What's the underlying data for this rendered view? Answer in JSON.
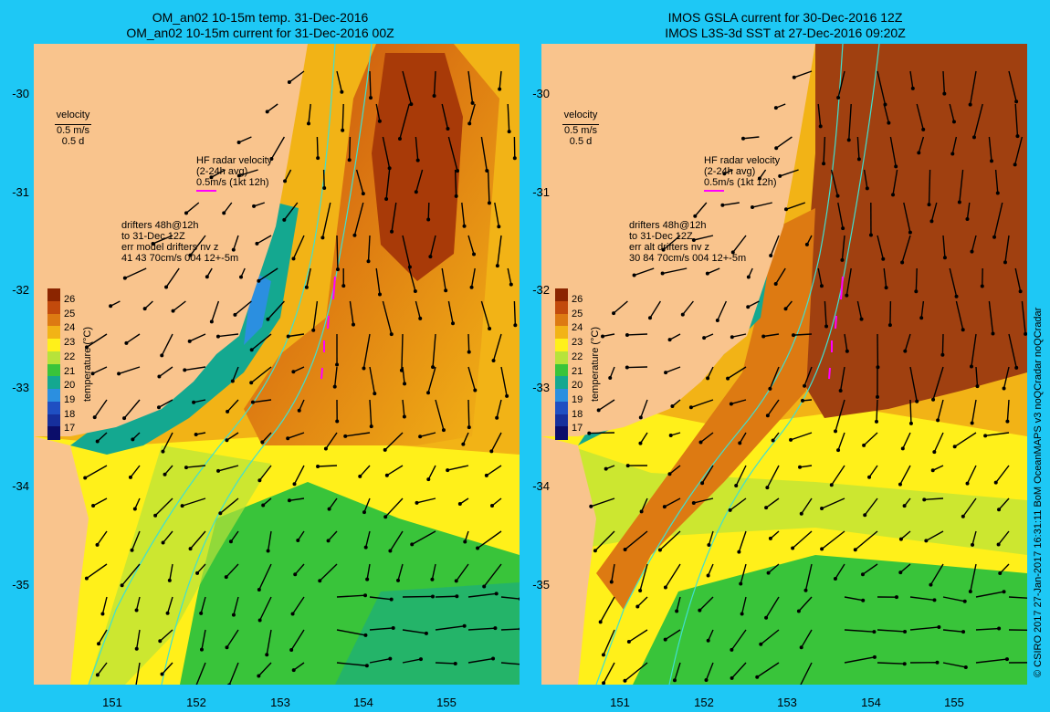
{
  "left_panel": {
    "title_line1": "OM_an02 10-15m temp. 31-Dec-2016",
    "title_line2": "OM_an02 10-15m current for 31-Dec-2016 00Z",
    "drifters_text": "drifters 48h@12h",
    "drifters_to": "to 31-Dec 12Z",
    "err_line": "err model drifters nv z",
    "err_values": "41 43 70cm/s 004 12+-5m"
  },
  "right_panel": {
    "title_line1": "IMOS GSLA current for 30-Dec-2016 12Z",
    "title_line2": "IMOS L3S-3d SST at 27-Dec-2016 09:20Z",
    "drifters_text": "drifters 48h@12h",
    "drifters_to": "to 31-Dec 12Z",
    "err_line": "err alt drifters nv z",
    "err_values": "30 84 70cm/s 004 12+-5m"
  },
  "velocity_legend": {
    "label": "velocity",
    "scale": "0.5 m/s",
    "days": "0.5 d"
  },
  "hf_radar": {
    "line1": "HF radar velocity",
    "line2": "(2-24h avg)",
    "line3": "0.5m/s (1kt 12h)"
  },
  "colorbar": {
    "title": "temperature (°C)",
    "ticks": [
      "26",
      "25",
      "24",
      "23",
      "22",
      "21",
      "20",
      "19",
      "18",
      "17"
    ],
    "colors": [
      "#8b2500",
      "#c24a0c",
      "#dd7a12",
      "#f2b316",
      "#fff01a",
      "#b7e33a",
      "#39c43a",
      "#14a890",
      "#2b8fe0",
      "#1f4fc2",
      "#162f9c",
      "#0b0d6a"
    ]
  },
  "y_ticks": [
    "-30",
    "-31",
    "-32",
    "-33",
    "-34",
    "-35"
  ],
  "x_ticks": [
    "151",
    "152",
    "153",
    "154",
    "155"
  ],
  "credit": "© CSIRO 2017   27-Jan-2017 16:31:11 BoM OceanMAPS v3 noQCradar noQCradar",
  "colors": {
    "background": "#1ec8f5",
    "land": "#f9c48d",
    "drifter": "#ff00ff",
    "isobath": "#40e0d0"
  }
}
